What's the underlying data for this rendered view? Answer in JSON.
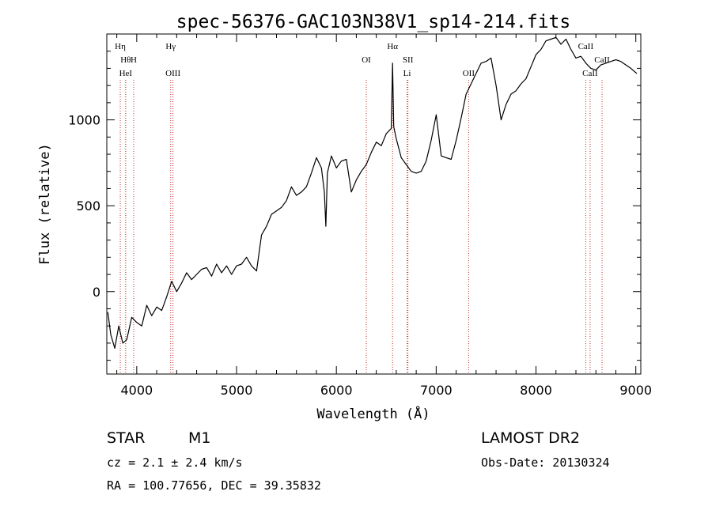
{
  "chart_data": {
    "type": "line",
    "title": "spec-56376-GAC103N38V1_sp14-214.fits",
    "xlabel": "Wavelength (Å)",
    "ylabel": "Flux (relative)",
    "xlim": [
      3700,
      9050
    ],
    "ylim": [
      -480,
      1500
    ],
    "x_ticks": [
      {
        "value": 4000,
        "label": "4000"
      },
      {
        "value": 5000,
        "label": "5000"
      },
      {
        "value": 6000,
        "label": "6000"
      },
      {
        "value": 7000,
        "label": "7000"
      },
      {
        "value": 8000,
        "label": "8000"
      },
      {
        "value": 9000,
        "label": "9000"
      }
    ],
    "y_ticks": [
      {
        "value": 0,
        "label": "0"
      },
      {
        "value": 500,
        "label": "500"
      },
      {
        "value": 1000,
        "label": "1000"
      }
    ],
    "lines": [
      {
        "x": 3835,
        "label": "Hη",
        "tier": 0
      },
      {
        "x": 3889,
        "label": "Hθ",
        "tier": 1
      },
      {
        "x": 3969,
        "label": "H",
        "tier": 1
      },
      {
        "x": 3889,
        "label": "HeI",
        "tier": 2
      },
      {
        "x": 4340,
        "label": "Hγ",
        "tier": 0
      },
      {
        "x": 4363,
        "label": "OIII",
        "tier": 2
      },
      {
        "x": 6300,
        "label": "OI",
        "tier": 1
      },
      {
        "x": 6563,
        "label": "Hα",
        "tier": 0
      },
      {
        "x": 6717,
        "label": "SII",
        "tier": 1
      },
      {
        "x": 6708,
        "label": "Li",
        "tier": 2
      },
      {
        "x": 7325,
        "label": "OII",
        "tier": 2
      },
      {
        "x": 8498,
        "label": "CaII",
        "tier": 0
      },
      {
        "x": 8542,
        "label": "CaII",
        "tier": 2
      },
      {
        "x": 8662,
        "label": "CaII",
        "tier": 1
      }
    ],
    "series": [
      {
        "x": [
          3710,
          3740,
          3780,
          3820,
          3860,
          3900,
          3950,
          4000,
          4050,
          4100,
          4150,
          4200,
          4250,
          4300,
          4350,
          4400,
          4450,
          4500,
          4550,
          4600,
          4650,
          4700,
          4750,
          4800,
          4850,
          4900,
          4950,
          5000,
          5050,
          5100,
          5150,
          5200,
          5250,
          5300,
          5350,
          5400,
          5450,
          5500,
          5550,
          5600,
          5650,
          5700,
          5750,
          5800,
          5850,
          5880,
          5895,
          5910,
          5950,
          6000,
          6050,
          6100,
          6150,
          6200,
          6250,
          6300,
          6350,
          6400,
          6450,
          6500,
          6550,
          6563,
          6575,
          6600,
          6650,
          6700,
          6750,
          6800,
          6850,
          6900,
          6950,
          7000,
          7050,
          7100,
          7150,
          7200,
          7250,
          7300,
          7350,
          7400,
          7450,
          7500,
          7550,
          7600,
          7650,
          7700,
          7750,
          7800,
          7850,
          7900,
          7950,
          8000,
          8050,
          8100,
          8150,
          8200,
          8250,
          8300,
          8350,
          8400,
          8450,
          8500,
          8550,
          8600,
          8650,
          8700,
          8750,
          8800,
          8850,
          8900,
          8950,
          8990,
          9010
        ],
        "y": [
          -120,
          -250,
          -330,
          -200,
          -300,
          -280,
          -150,
          -180,
          -200,
          -80,
          -140,
          -90,
          -110,
          -30,
          60,
          0,
          50,
          110,
          70,
          100,
          130,
          140,
          90,
          160,
          110,
          150,
          100,
          150,
          160,
          200,
          150,
          120,
          330,
          380,
          450,
          470,
          490,
          530,
          610,
          560,
          580,
          610,
          690,
          780,
          720,
          580,
          380,
          690,
          790,
          720,
          760,
          770,
          580,
          650,
          700,
          740,
          810,
          870,
          850,
          920,
          950,
          1330,
          960,
          890,
          780,
          740,
          700,
          690,
          700,
          760,
          880,
          1030,
          790,
          780,
          770,
          880,
          1010,
          1150,
          1210,
          1270,
          1330,
          1340,
          1360,
          1200,
          1000,
          1090,
          1150,
          1170,
          1210,
          1240,
          1310,
          1380,
          1410,
          1460,
          1470,
          1480,
          1440,
          1470,
          1410,
          1360,
          1370,
          1330,
          1300,
          1290,
          1320,
          1330,
          1340,
          1350,
          1340,
          1320,
          1300,
          1280,
          1270
        ]
      }
    ]
  },
  "footer": {
    "object_class": "STAR",
    "subclass": "M1",
    "survey": "LAMOST DR2",
    "cz": "cz = 2.1 ± 2.4 km/s",
    "obs_date": "Obs-Date: 20130324",
    "radec": "RA = 100.77656, DEC =  39.35832"
  }
}
